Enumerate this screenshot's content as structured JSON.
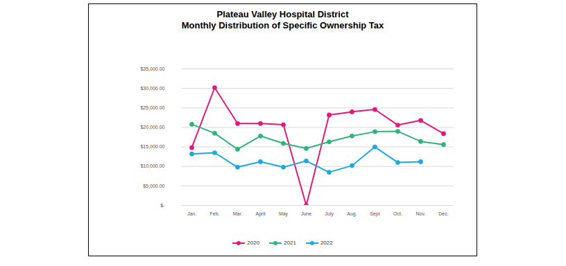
{
  "chart_data": {
    "type": "line",
    "title": "Plateau Valley Hospital District\nMonthly Distribution of Specific Ownership Tax",
    "categories": [
      "Jan.",
      "Feb.",
      "Mar.",
      "April",
      "May",
      "June",
      "July",
      "Aug.",
      "Sept",
      "Oct.",
      "Nov.",
      "Dec."
    ],
    "series": [
      {
        "name": "2020",
        "color": "#e2187d",
        "marker": "circle",
        "values": [
          14800,
          30200,
          21000,
          21000,
          20700,
          0,
          23200,
          24000,
          24600,
          20600,
          21800,
          18400
        ]
      },
      {
        "name": "2021",
        "color": "#2fb47c",
        "marker": "circle",
        "values": [
          20800,
          18500,
          14400,
          17800,
          15900,
          14600,
          16300,
          17800,
          18900,
          19000,
          16400,
          15600
        ]
      },
      {
        "name": "2022",
        "color": "#1fa8e0",
        "marker": "circle",
        "values": [
          13200,
          13500,
          9800,
          11200,
          9800,
          11400,
          8500,
          10200,
          15000,
          11000,
          11200,
          null
        ]
      }
    ],
    "ylim": [
      0,
      35000
    ],
    "yticks": [
      {
        "value": 0,
        "label": "$-"
      },
      {
        "value": 5000,
        "label": "$5,000.00"
      },
      {
        "value": 10000,
        "label": "$10,000.00"
      },
      {
        "value": 15000,
        "label": "$15,000.00"
      },
      {
        "value": 20000,
        "label": "$20,000.00"
      },
      {
        "value": 25000,
        "label": "$25,000.00"
      },
      {
        "value": 30000,
        "label": "$30,000.00"
      },
      {
        "value": 35000,
        "label": "$35,000.00"
      }
    ],
    "grid": true,
    "legend": "bottom"
  }
}
